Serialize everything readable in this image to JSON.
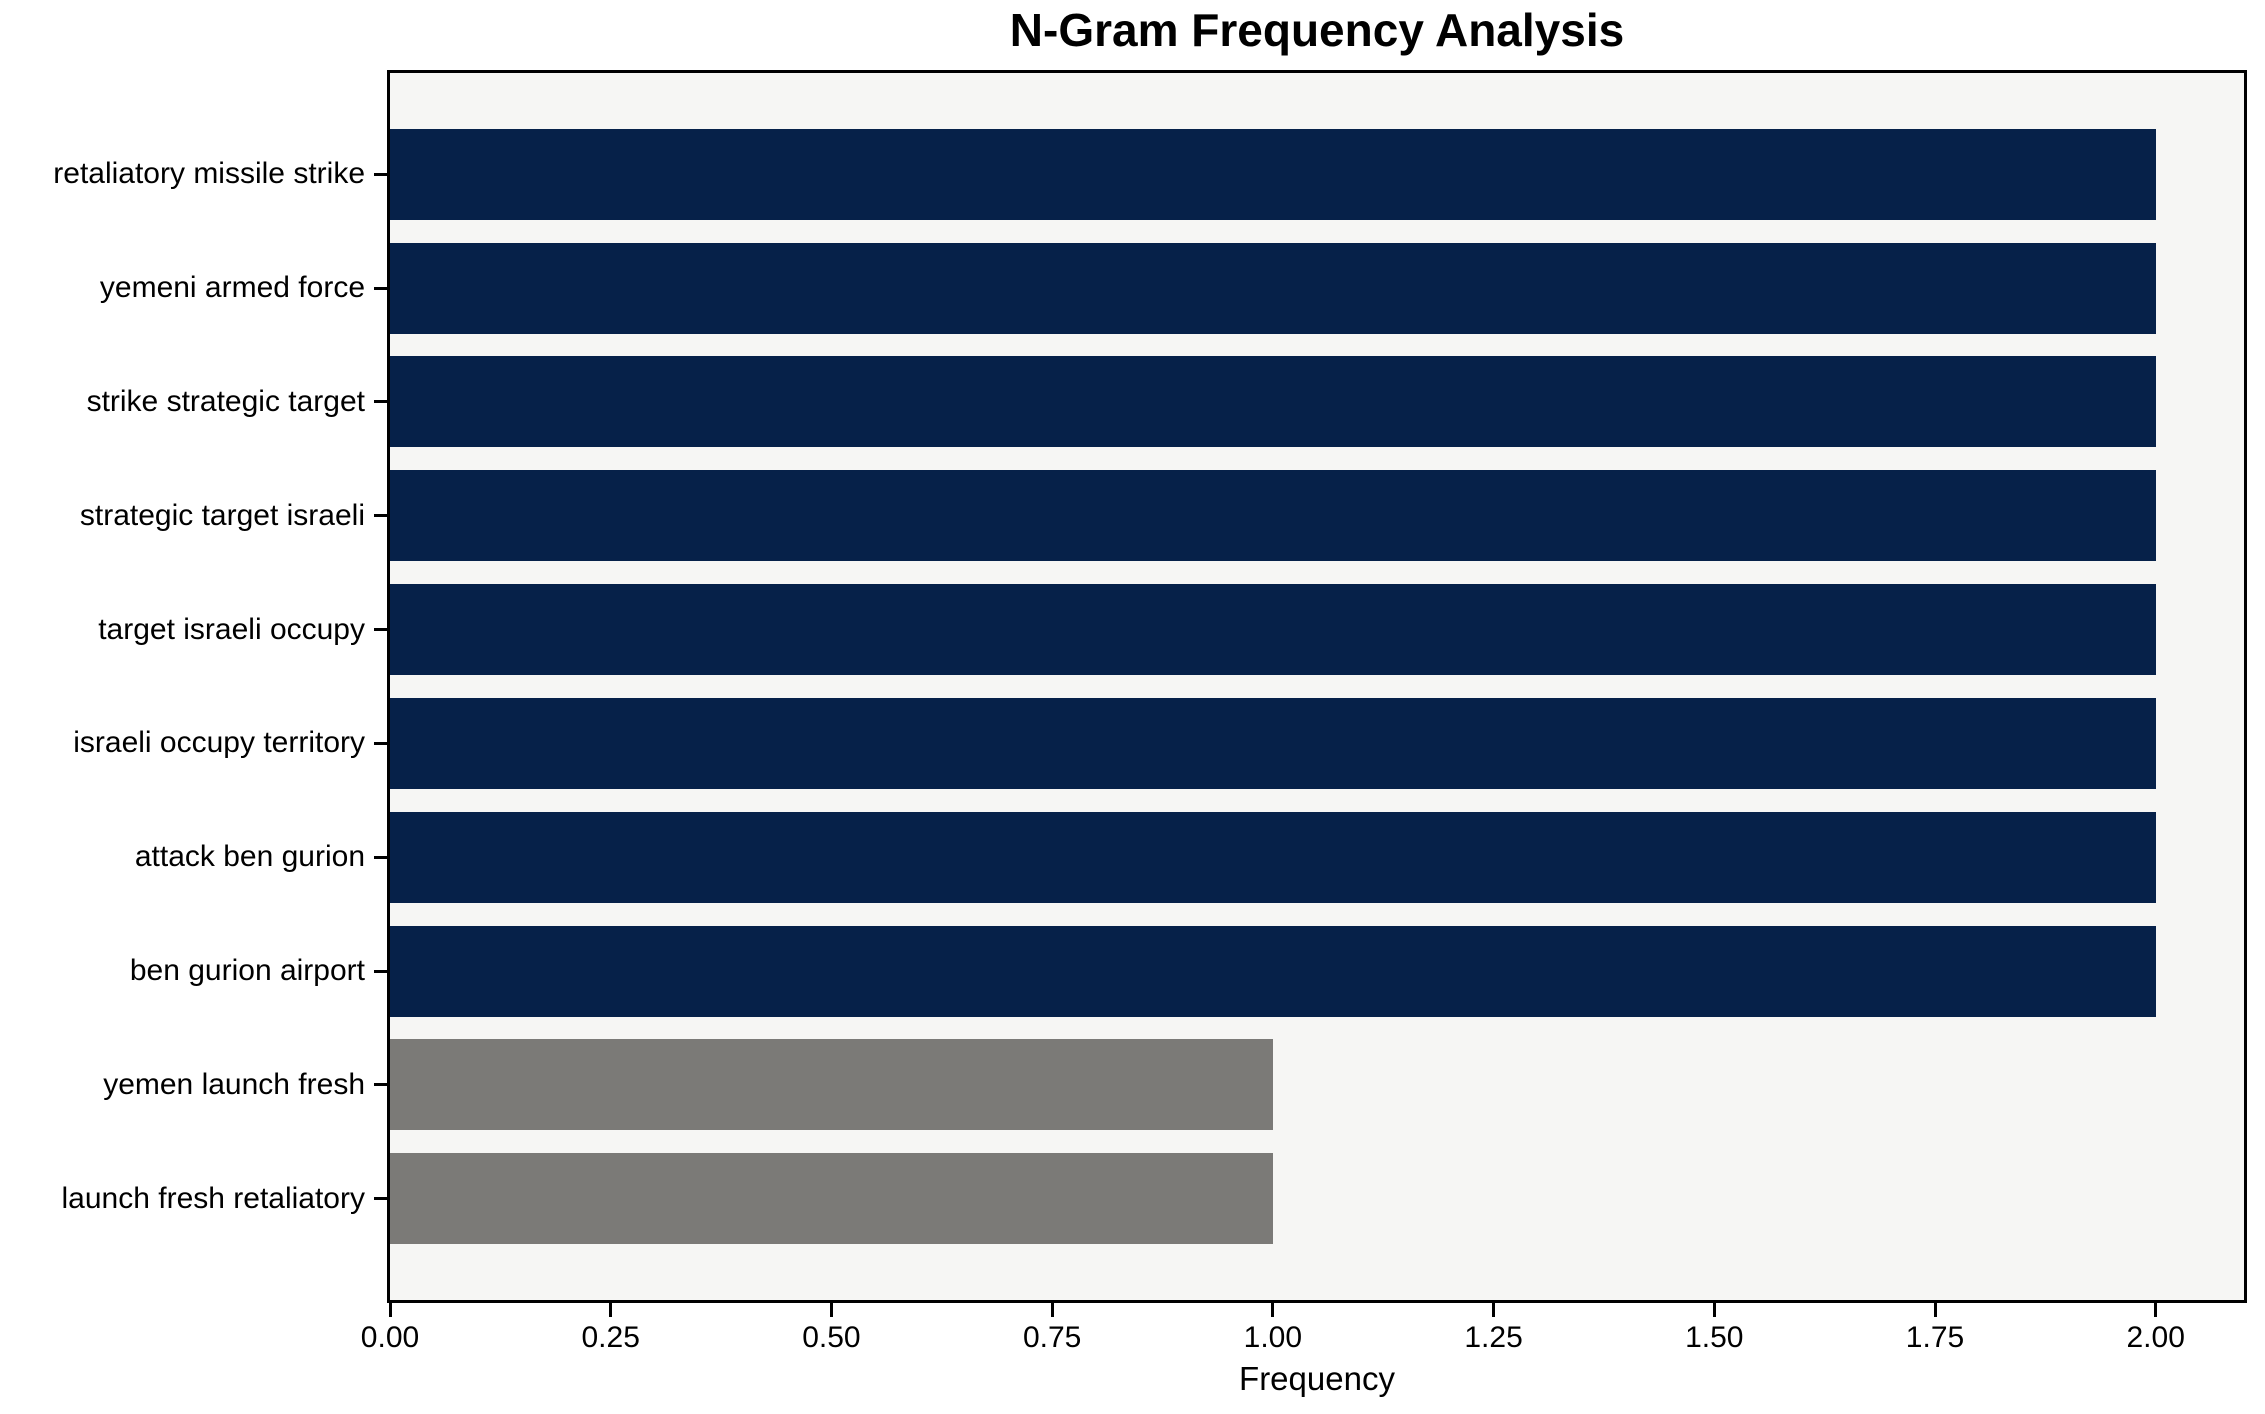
{
  "chart_data": {
    "type": "bar",
    "orientation": "horizontal",
    "title": "N-Gram Frequency Analysis",
    "xlabel": "Frequency",
    "ylabel": "",
    "categories": [
      "retaliatory missile strike",
      "yemeni armed force",
      "strike strategic target",
      "strategic target israeli",
      "target israeli occupy",
      "israeli occupy territory",
      "attack ben gurion",
      "ben gurion airport",
      "yemen launch fresh",
      "launch fresh retaliatory"
    ],
    "values": [
      2,
      2,
      2,
      2,
      2,
      2,
      2,
      2,
      1,
      1
    ],
    "bar_colors": [
      "#062149",
      "#062149",
      "#062149",
      "#062149",
      "#062149",
      "#062149",
      "#062149",
      "#062149",
      "#7b7a77",
      "#7b7a77"
    ],
    "xlim": [
      0,
      2.1
    ],
    "x_ticks": [
      {
        "value": 0.0,
        "label": "0.00"
      },
      {
        "value": 0.25,
        "label": "0.25"
      },
      {
        "value": 0.5,
        "label": "0.50"
      },
      {
        "value": 0.75,
        "label": "0.75"
      },
      {
        "value": 1.0,
        "label": "1.00"
      },
      {
        "value": 1.25,
        "label": "1.25"
      },
      {
        "value": 1.5,
        "label": "1.50"
      },
      {
        "value": 1.75,
        "label": "1.75"
      },
      {
        "value": 2.0,
        "label": "2.00"
      }
    ],
    "grid": false,
    "legend": false,
    "colors": {
      "bar_high": "#062149",
      "bar_low": "#7b7a77",
      "plot_background": "#f6f6f4",
      "spine": "#000000",
      "text": "#000000"
    }
  }
}
